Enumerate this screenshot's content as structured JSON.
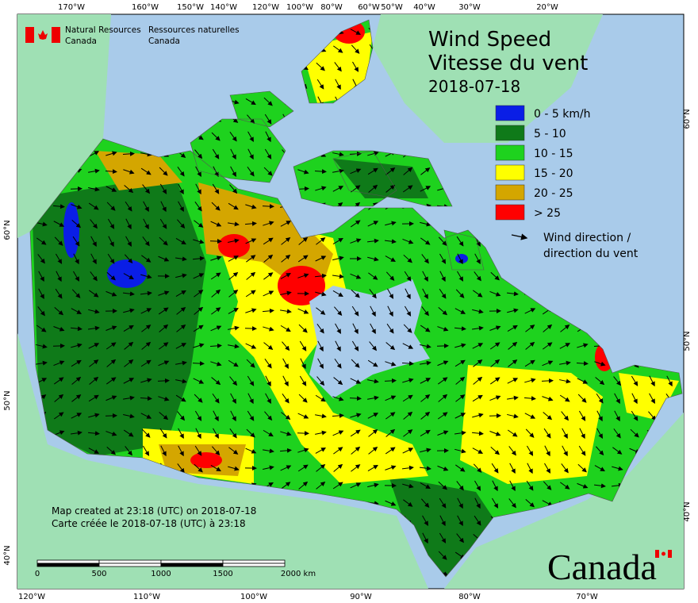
{
  "header": {
    "org_en": [
      "Natural Resources",
      "Canada"
    ],
    "org_fr": [
      "Ressources naturelles",
      "Canada"
    ]
  },
  "title": {
    "en": "Wind Speed",
    "fr": "Vitesse du vent",
    "date": "2018-07-18"
  },
  "legend": {
    "items": [
      {
        "label": "0 - 5 km/h",
        "color": "#0a1ee6"
      },
      {
        "label": "5 - 10",
        "color": "#0f7a19"
      },
      {
        "label": "10 - 15",
        "color": "#1ed21e"
      },
      {
        "label": "15 - 20",
        "color": "#ffff00"
      },
      {
        "label": "20 - 25",
        "color": "#d4a600"
      },
      {
        "label": "> 25",
        "color": "#ff0000"
      }
    ],
    "arrow": [
      "Wind direction /",
      "direction du vent"
    ]
  },
  "graticule": {
    "top": [
      "170°W",
      "160°W",
      "150°W",
      "140°W",
      "120°W",
      "100°W",
      "80°W",
      "60°W",
      "50°W",
      "40°W",
      "30°W",
      "20°W"
    ],
    "bottom": [
      "120°W",
      "110°W",
      "100°W",
      "90°W",
      "80°W",
      "70°W"
    ],
    "left": [
      "60°N",
      "50°N",
      "40°N"
    ],
    "right": [
      "60°N",
      "50°N",
      "40°N"
    ]
  },
  "scale": {
    "ticks": [
      "0",
      "500",
      "1000",
      "1500",
      "2000 km"
    ]
  },
  "credits": [
    "Map created at 23:18 (UTC) on 2018-07-18",
    "Carte créée le 2018-07-18 (UTC) à 23:18"
  ],
  "wordmark": "Canada"
}
